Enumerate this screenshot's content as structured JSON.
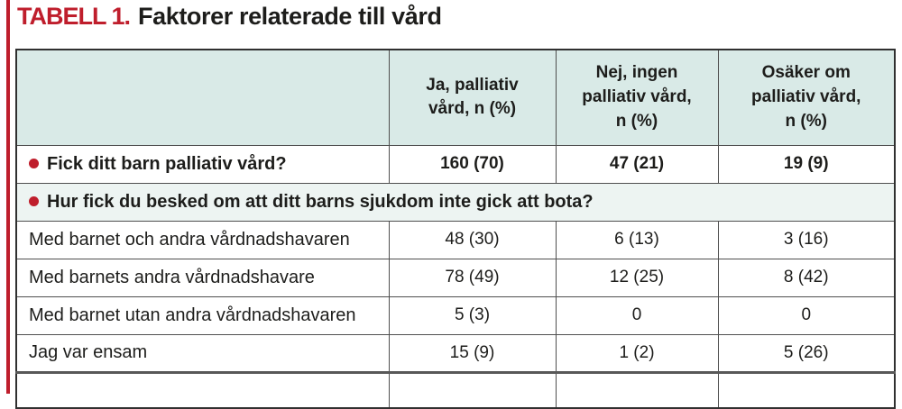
{
  "title": {
    "label": "TABELL 1.",
    "text": "Faktorer relaterade till vård"
  },
  "colors": {
    "accent_red": "#bf1e2c",
    "header_bg": "#d9eae7",
    "section_bg": "#edf4f2",
    "border": "#4f4f4f"
  },
  "table": {
    "columns": [
      "",
      "Ja, palliativ\nvård, n (%)",
      "Nej, ingen\npalliativ vård,\nn (%)",
      "Osäker om\npalliativ vård,\nn (%)"
    ],
    "rows": [
      {
        "type": "question",
        "bullet": true,
        "label": "Fick ditt barn palliativ vård?",
        "values": [
          "160 (70)",
          "47 (21)",
          "19 (9)"
        ]
      },
      {
        "type": "section",
        "bullet": true,
        "label": "Hur fick du besked om att ditt barns sjukdom inte gick att bota?"
      },
      {
        "type": "data",
        "bullet": false,
        "label": "Med barnet och andra vårdnadshavaren",
        "values": [
          "48 (30)",
          "6 (13)",
          "3 (16)"
        ]
      },
      {
        "type": "data",
        "bullet": false,
        "label": "Med barnets andra vårdnadshavare",
        "values": [
          "78 (49)",
          "12 (25)",
          "8 (42)"
        ]
      },
      {
        "type": "data",
        "bullet": false,
        "label": "Med barnet utan andra vårdnadshavaren",
        "values": [
          "5 (3)",
          "0",
          "0"
        ]
      },
      {
        "type": "data",
        "bullet": false,
        "label": "Jag var ensam",
        "values": [
          "15 (9)",
          "1 (2)",
          "5 (26)"
        ]
      }
    ]
  }
}
